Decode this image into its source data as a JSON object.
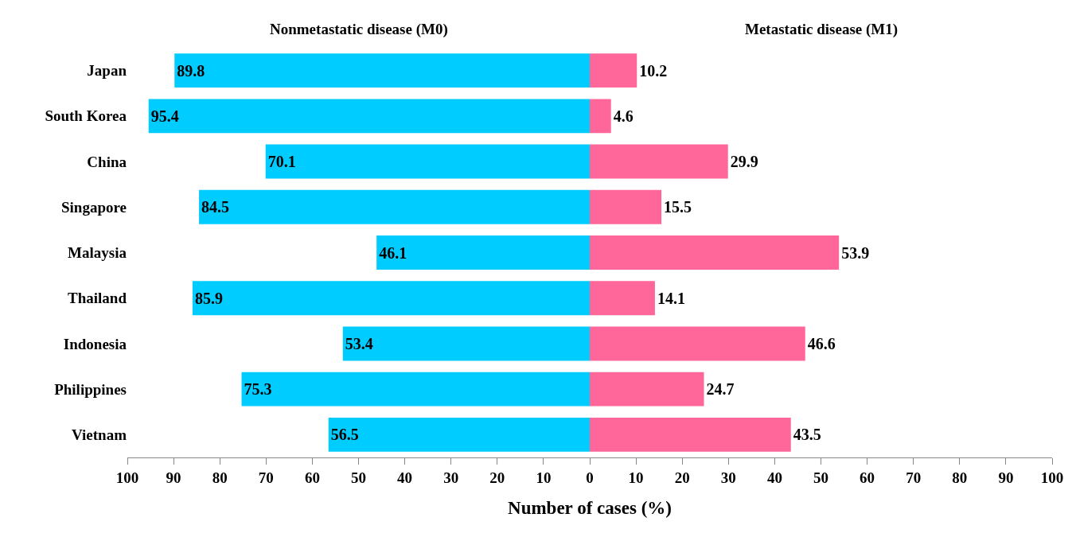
{
  "chart_data": {
    "type": "bar",
    "orientation": "horizontal",
    "xlabel": "Number of cases (%)",
    "annotations": [
      "Nonmetastatic disease (M0)",
      "Metastatic disease (M1)"
    ],
    "categories": [
      "Japan",
      "South Korea",
      "China",
      "Singapore",
      "Malaysia",
      "Thailand",
      "Indonesia",
      "Philippines",
      "Vietnam"
    ],
    "series": [
      {
        "color": "#00ccff",
        "values": [
          89.8,
          95.4,
          70.1,
          84.5,
          46.1,
          85.9,
          53.4,
          75.3,
          56.5
        ],
        "base": [
          -89.8,
          -95.4,
          -70.1,
          -84.5,
          -46.1,
          -85.9,
          -53.4,
          -75.3,
          -56.5
        ]
      },
      {
        "color": "#ff6699",
        "values": [
          10.2,
          4.6,
          29.9,
          15.5,
          53.9,
          14.1,
          46.6,
          24.7,
          43.5
        ]
      }
    ],
    "data_labels": true,
    "xlim": [
      -100,
      100
    ],
    "xticks": [
      {
        "value": -100,
        "label": "100"
      },
      {
        "value": -90,
        "label": "90"
      },
      {
        "value": -80,
        "label": "80"
      },
      {
        "value": -70,
        "label": "70"
      },
      {
        "value": -60,
        "label": "60"
      },
      {
        "value": -50,
        "label": "50"
      },
      {
        "value": -40,
        "label": "40"
      },
      {
        "value": -30,
        "label": "30"
      },
      {
        "value": -20,
        "label": "20"
      },
      {
        "value": -10,
        "label": "10"
      },
      0,
      10,
      20,
      30,
      40,
      50,
      60,
      70,
      80,
      90,
      100
    ]
  }
}
